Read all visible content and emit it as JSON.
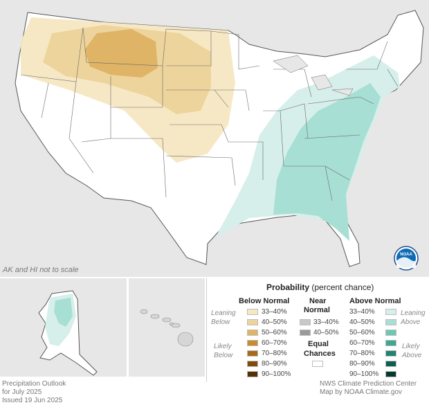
{
  "map": {
    "scale_note": "AK and HI not to scale",
    "logo_text": "NOAA"
  },
  "legend": {
    "title_bold": "Probability",
    "title_rest": "(percent chance)",
    "below_header": "Below Normal",
    "near_header_line1": "Near",
    "near_header_line2": "Normal",
    "above_header": "Above Normal",
    "leaning_below_1": "Leaning",
    "leaning_below_2": "Below",
    "likely_below_1": "Likely",
    "likely_below_2": "Below",
    "leaning_above_1": "Leaning",
    "leaning_above_2": "Above",
    "likely_above_1": "Likely",
    "likely_above_2": "Above",
    "equal_line1": "Equal",
    "equal_line2": "Chances",
    "below": [
      {
        "label": "33–40%",
        "color": "#f7e7c2"
      },
      {
        "label": "40–50%",
        "color": "#edd49c"
      },
      {
        "label": "50–60%",
        "color": "#dfb466"
      },
      {
        "label": "60–70%",
        "color": "#c98c2c"
      },
      {
        "label": "70–80%",
        "color": "#a86a17"
      },
      {
        "label": "80–90%",
        "color": "#7f4c0c"
      },
      {
        "label": "90–100%",
        "color": "#553005"
      }
    ],
    "near": [
      {
        "label": "33–40%",
        "color": "#c8c8c8"
      },
      {
        "label": "40–50%",
        "color": "#9a9a9a"
      }
    ],
    "above": [
      {
        "label": "33–40%",
        "color": "#d6efea"
      },
      {
        "label": "40–50%",
        "color": "#a8dfd4"
      },
      {
        "label": "50–60%",
        "color": "#6cc7b5"
      },
      {
        "label": "60–70%",
        "color": "#3aa893"
      },
      {
        "label": "70–80%",
        "color": "#1f8470"
      },
      {
        "label": "80–90%",
        "color": "#0f5f4f"
      },
      {
        "label": "90–100%",
        "color": "#063a30"
      }
    ],
    "equal_color": "#ffffff"
  },
  "footer": {
    "left_line1": "Precipitation Outlook",
    "left_line2": "for July 2025",
    "left_line3": "Issued 19 Jun 2025",
    "right_line1": "NWS Climate Prediction Center",
    "right_line2": "Map by NOAA Climate.gov"
  }
}
